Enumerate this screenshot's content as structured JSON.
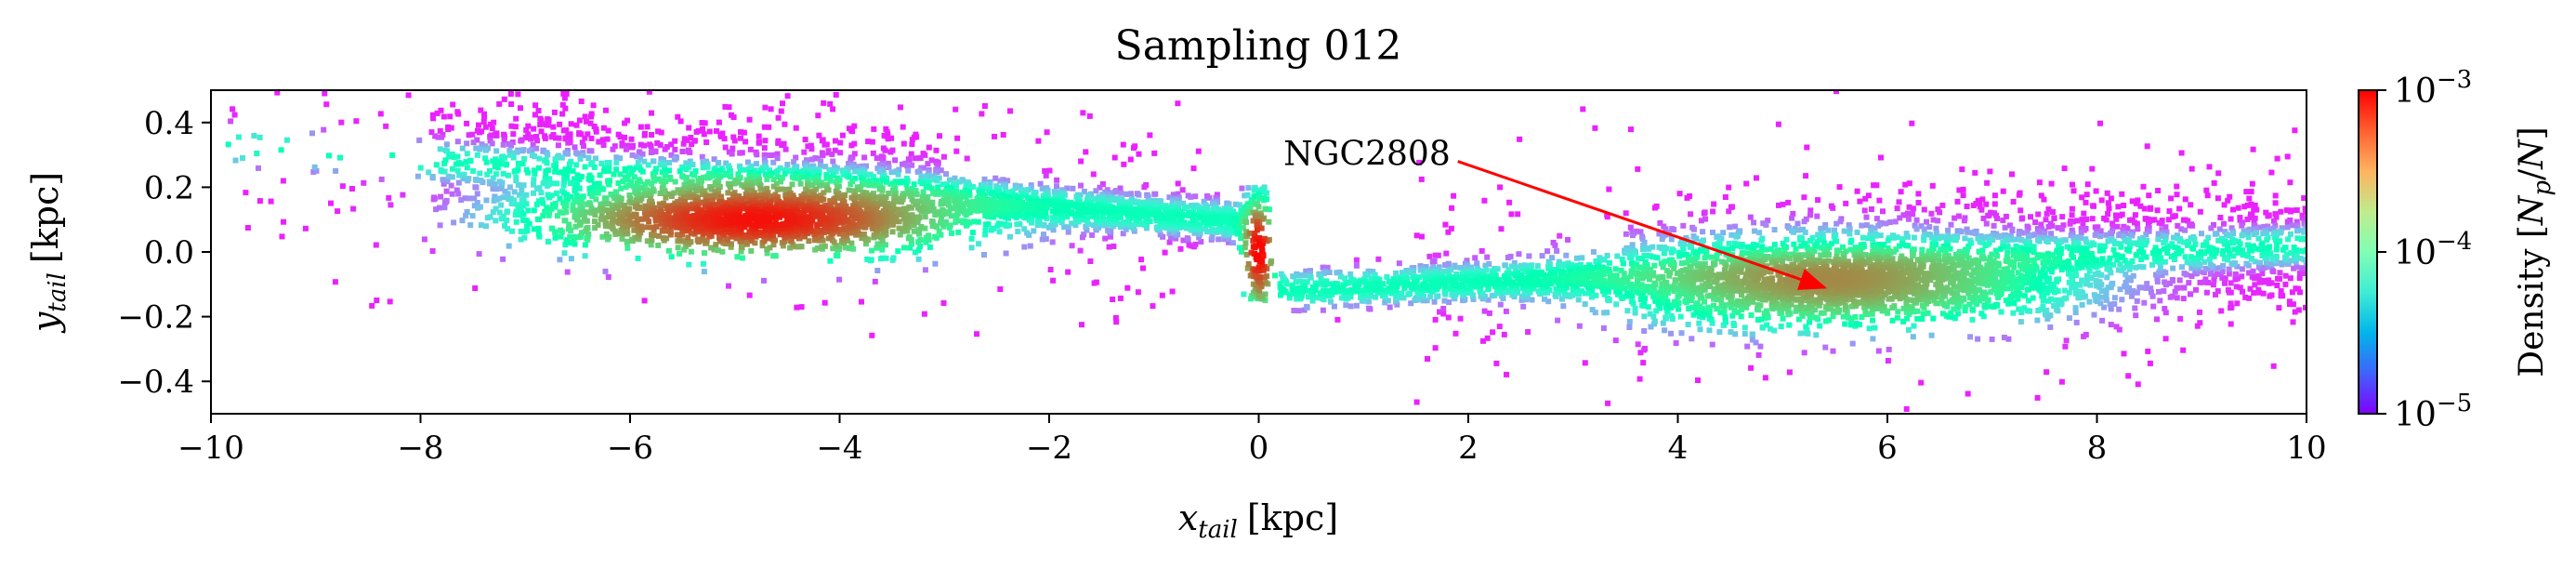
{
  "chart_data": {
    "type": "heatmap",
    "title": "Sampling 012",
    "xlabel": {
      "var": "x",
      "sub": "tail",
      "unit": "[kpc]"
    },
    "ylabel": {
      "var": "y",
      "sub": "tail",
      "unit": "[kpc]"
    },
    "xlim": [
      -10,
      10
    ],
    "ylim": [
      -0.5,
      0.5
    ],
    "xticks": [
      -10,
      -8,
      -6,
      -4,
      -2,
      0,
      2,
      4,
      6,
      8,
      10
    ],
    "yticks": [
      -0.4,
      -0.2,
      0.0,
      0.2,
      0.4
    ],
    "xtick_labels": [
      "−10",
      "−8",
      "−6",
      "−4",
      "−2",
      "0",
      "2",
      "4",
      "6",
      "8",
      "10"
    ],
    "ytick_labels": [
      "−0.4",
      "−0.2",
      "0.0",
      "0.2",
      "0.4"
    ],
    "colorbar": {
      "label_prefix": "Density ",
      "label_math": "[N_p/N]",
      "scale": "log",
      "range": [
        1e-05,
        0.001
      ],
      "ticks": [
        {
          "value": 0.001,
          "base": "10",
          "exp": "−3"
        },
        {
          "value": 0.0001,
          "base": "10",
          "exp": "−4"
        },
        {
          "value": 1e-05,
          "base": "10",
          "exp": "−5"
        }
      ],
      "colormap": "rainbow"
    },
    "annotation": {
      "text": "NGC2808",
      "arrow_color": "#ff0000",
      "arrow_from": [
        1.9,
        0.28
      ],
      "arrow_to": [
        5.4,
        -0.11
      ]
    },
    "grid": false,
    "stream_structure": {
      "leading_tail": {
        "x_range": [
          -7.8,
          0.0
        ],
        "peak": {
          "x": -4.8,
          "y": 0.1,
          "density": 0.0009
        },
        "band_y_at_ends": [
          0.28,
          0.09
        ]
      },
      "trailing_tail": {
        "x_range": [
          0.2,
          10.0
        ],
        "peak": {
          "x": 5.5,
          "y": -0.1,
          "density": 0.0004
        },
        "band_y_at_ends": [
          -0.12,
          0.02
        ]
      },
      "cluster_center": {
        "x": 0.0,
        "y": 0.0,
        "density": 0.001
      }
    }
  }
}
